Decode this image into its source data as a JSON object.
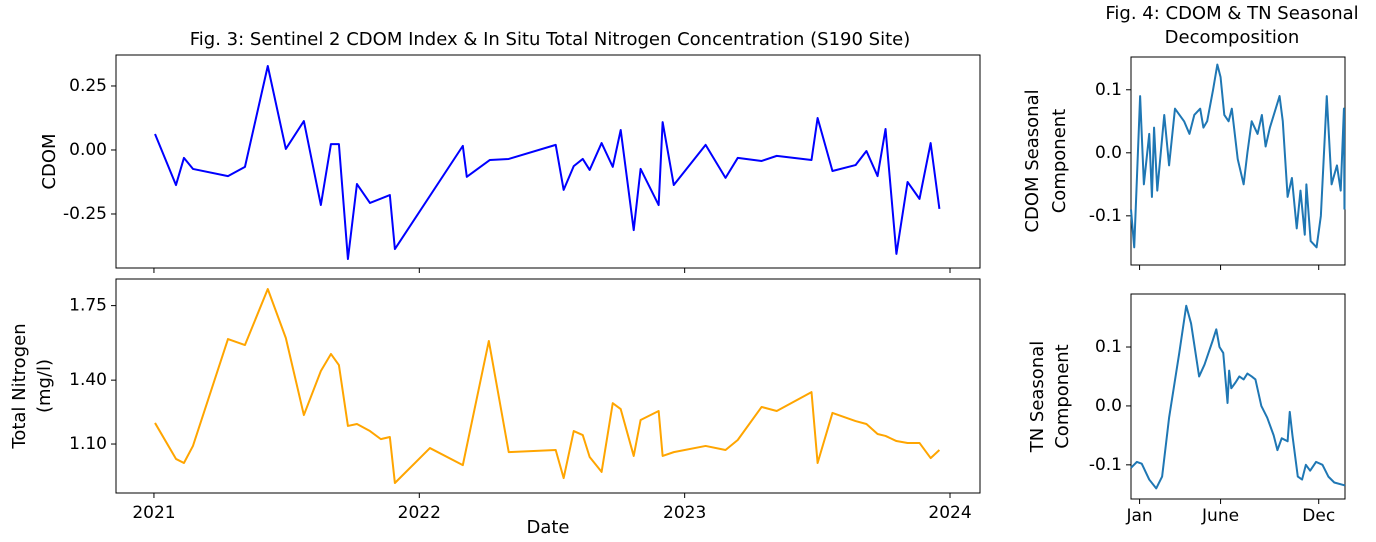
{
  "chart_data": [
    {
      "type": "line",
      "title": [
        "Fig. 3: Sentinel 2 CDOM Index & In Situ Total Nitrogen Concentration (S190 Site)"
      ],
      "ylabel": [
        "CDOM"
      ],
      "x": [
        2021.004,
        2021.083,
        2021.113,
        2021.147,
        2021.279,
        2021.343,
        2021.429,
        2021.497,
        2021.565,
        2021.629,
        2021.667,
        2021.697,
        2021.731,
        2021.765,
        2021.814,
        2021.889,
        2021.908,
        2022.164,
        2022.179,
        2022.266,
        2022.337,
        2022.514,
        2022.544,
        2022.582,
        2022.616,
        2022.642,
        2022.687,
        2022.729,
        2022.759,
        2022.808,
        2022.834,
        2022.902,
        2022.917,
        2022.959,
        2023.079,
        2023.154,
        2023.2,
        2023.29,
        2023.347,
        2023.478,
        2023.501,
        2023.557,
        2023.644,
        2023.685,
        2023.727,
        2023.757,
        2023.798,
        2023.84,
        2023.885,
        2023.927,
        2023.96
      ],
      "series": [
        {
          "color": "#0000ff",
          "values": [
            0.0625,
            -0.137,
            -0.031,
            -0.074,
            -0.102,
            -0.066,
            0.328,
            0.004,
            0.113,
            -0.215,
            0.023,
            0.023,
            -0.426,
            -0.133,
            -0.207,
            -0.176,
            -0.387,
            0.016,
            -0.105,
            -0.039,
            -0.035,
            0.02,
            -0.156,
            -0.063,
            -0.035,
            -0.078,
            0.027,
            -0.066,
            0.078,
            -0.313,
            -0.074,
            -0.215,
            0.109,
            -0.137,
            0.02,
            -0.109,
            -0.031,
            -0.043,
            -0.023,
            -0.039,
            0.125,
            -0.082,
            -0.059,
            -0.004,
            -0.102,
            0.082,
            -0.406,
            -0.125,
            -0.191,
            0.027,
            -0.23
          ]
        }
      ],
      "xlim": [
        2020.857,
        2024.113
      ],
      "xticks": [
        2021,
        2022,
        2023,
        2024
      ],
      "show_xtick_labels": false,
      "ylim": [
        -0.461,
        0.371
      ],
      "yticks": [
        -0.25,
        {
          "value": 0,
          "label": "0.00"
        },
        0.25
      ]
    },
    {
      "type": "line",
      "ylabel": [
        "Total Nitrogen",
        "(mg/l)"
      ],
      "xlabel": "Date",
      "x": [
        2021.004,
        2021.083,
        2021.113,
        2021.147,
        2021.279,
        2021.343,
        2021.429,
        2021.497,
        2021.565,
        2021.629,
        2021.667,
        2021.697,
        2021.731,
        2021.765,
        2021.814,
        2021.855,
        2021.889,
        2021.908,
        2022.04,
        2022.164,
        2022.262,
        2022.337,
        2022.514,
        2022.544,
        2022.582,
        2022.616,
        2022.642,
        2022.687,
        2022.729,
        2022.759,
        2022.808,
        2022.834,
        2022.902,
        2022.917,
        2022.959,
        2023.079,
        2023.154,
        2023.2,
        2023.29,
        2023.347,
        2023.478,
        2023.501,
        2023.557,
        2023.644,
        2023.685,
        2023.727,
        2023.757,
        2023.798,
        2023.84,
        2023.885,
        2023.927,
        2023.96
      ],
      "series": [
        {
          "color": "#ffa500",
          "values": [
            1.199,
            1.03,
            1.011,
            1.091,
            1.593,
            1.565,
            1.828,
            1.598,
            1.236,
            1.443,
            1.523,
            1.471,
            1.185,
            1.194,
            1.161,
            1.123,
            1.133,
            0.917,
            1.081,
            1.001,
            1.584,
            1.062,
            1.072,
            0.94,
            1.161,
            1.142,
            1.039,
            0.969,
            1.292,
            1.264,
            1.044,
            1.213,
            1.255,
            1.044,
            1.062,
            1.091,
            1.072,
            1.119,
            1.274,
            1.255,
            1.344,
            1.011,
            1.246,
            1.208,
            1.194,
            1.147,
            1.138,
            1.114,
            1.105,
            1.105,
            1.034,
            1.072
          ]
        }
      ],
      "xlim": [
        2020.857,
        2024.113
      ],
      "xticks": [
        2021,
        2022,
        2023,
        2024
      ],
      "show_xtick_labels": true,
      "ylim": [
        0.87,
        1.875
      ],
      "yticks": [
        {
          "value": 1.1,
          "label": "1.10"
        },
        {
          "value": 1.4,
          "label": "1.40"
        },
        1.75
      ]
    },
    {
      "type": "line",
      "title": [
        "Fig. 4: CDOM & TN Seasonal",
        "Decomposition"
      ],
      "ylabel": [
        "CDOM Seasonal",
        "Component"
      ],
      "x": [
        -16,
        -10,
        1,
        8,
        18,
        23,
        27,
        33,
        46,
        55,
        66,
        83,
        93,
        102,
        113,
        119,
        126,
        137,
        145,
        151,
        158,
        166,
        172,
        183,
        194,
        201,
        209,
        220,
        228,
        235,
        243,
        261,
        267,
        276,
        284,
        293,
        300,
        308,
        311,
        319,
        330,
        338,
        345,
        349,
        358,
        368,
        375,
        381,
        382
      ],
      "series": [
        {
          "color": "#1f77b4",
          "values": [
            -0.09,
            -0.15,
            0.09,
            -0.05,
            0.03,
            -0.07,
            0.04,
            -0.06,
            0.06,
            -0.02,
            0.07,
            0.05,
            0.03,
            0.06,
            0.07,
            0.04,
            0.05,
            0.1,
            0.14,
            0.12,
            0.06,
            0.05,
            0.07,
            -0.01,
            -0.05,
            0.0,
            0.05,
            0.03,
            0.06,
            0.01,
            0.04,
            0.09,
            0.05,
            -0.07,
            -0.04,
            -0.12,
            -0.06,
            -0.13,
            -0.05,
            -0.14,
            -0.15,
            -0.1,
            0.02,
            0.09,
            -0.05,
            -0.02,
            -0.06,
            0.07,
            -0.09
          ]
        }
      ],
      "xlim": [
        -16,
        383
      ],
      "xticks": [
        {
          "value": 0,
          "label": "Jan"
        },
        {
          "value": 151,
          "label": "June"
        },
        {
          "value": 334,
          "label": "Dec"
        }
      ],
      "show_xtick_labels": false,
      "ylim": [
        -0.178,
        0.152
      ],
      "yticks": [
        -0.1,
        {
          "value": 0,
          "label": "0.0"
        },
        0.1
      ]
    },
    {
      "type": "line",
      "ylabel": [
        "TN Seasonal",
        "Component"
      ],
      "x": [
        -16,
        -5,
        4,
        18,
        31,
        42,
        55,
        74,
        87,
        96,
        111,
        121,
        136,
        143,
        149,
        156,
        164,
        167,
        171,
        179,
        186,
        194,
        201,
        209,
        216,
        227,
        238,
        250,
        257,
        265,
        276,
        280,
        285,
        295,
        303,
        310,
        318,
        329,
        341,
        352,
        363,
        383
      ],
      "series": [
        {
          "color": "#1f77b4",
          "values": [
            -0.105,
            -0.095,
            -0.098,
            -0.125,
            -0.14,
            -0.12,
            -0.02,
            0.09,
            0.17,
            0.14,
            0.05,
            0.07,
            0.11,
            0.13,
            0.1,
            0.09,
            0.005,
            0.06,
            0.03,
            0.04,
            0.05,
            0.045,
            0.055,
            0.05,
            0.045,
            0.0,
            -0.02,
            -0.05,
            -0.075,
            -0.055,
            -0.06,
            -0.01,
            -0.05,
            -0.12,
            -0.125,
            -0.1,
            -0.11,
            -0.095,
            -0.1,
            -0.12,
            -0.13,
            -0.135
          ]
        }
      ],
      "xlim": [
        -16,
        383
      ],
      "xticks": [
        {
          "value": 0,
          "label": "Jan"
        },
        {
          "value": 151,
          "label": "June"
        },
        {
          "value": 334,
          "label": "Dec"
        }
      ],
      "show_xtick_labels": true,
      "ylim": [
        -0.158,
        0.19
      ],
      "yticks": [
        -0.1,
        {
          "value": 0,
          "label": "0.0"
        },
        0.1
      ]
    }
  ]
}
